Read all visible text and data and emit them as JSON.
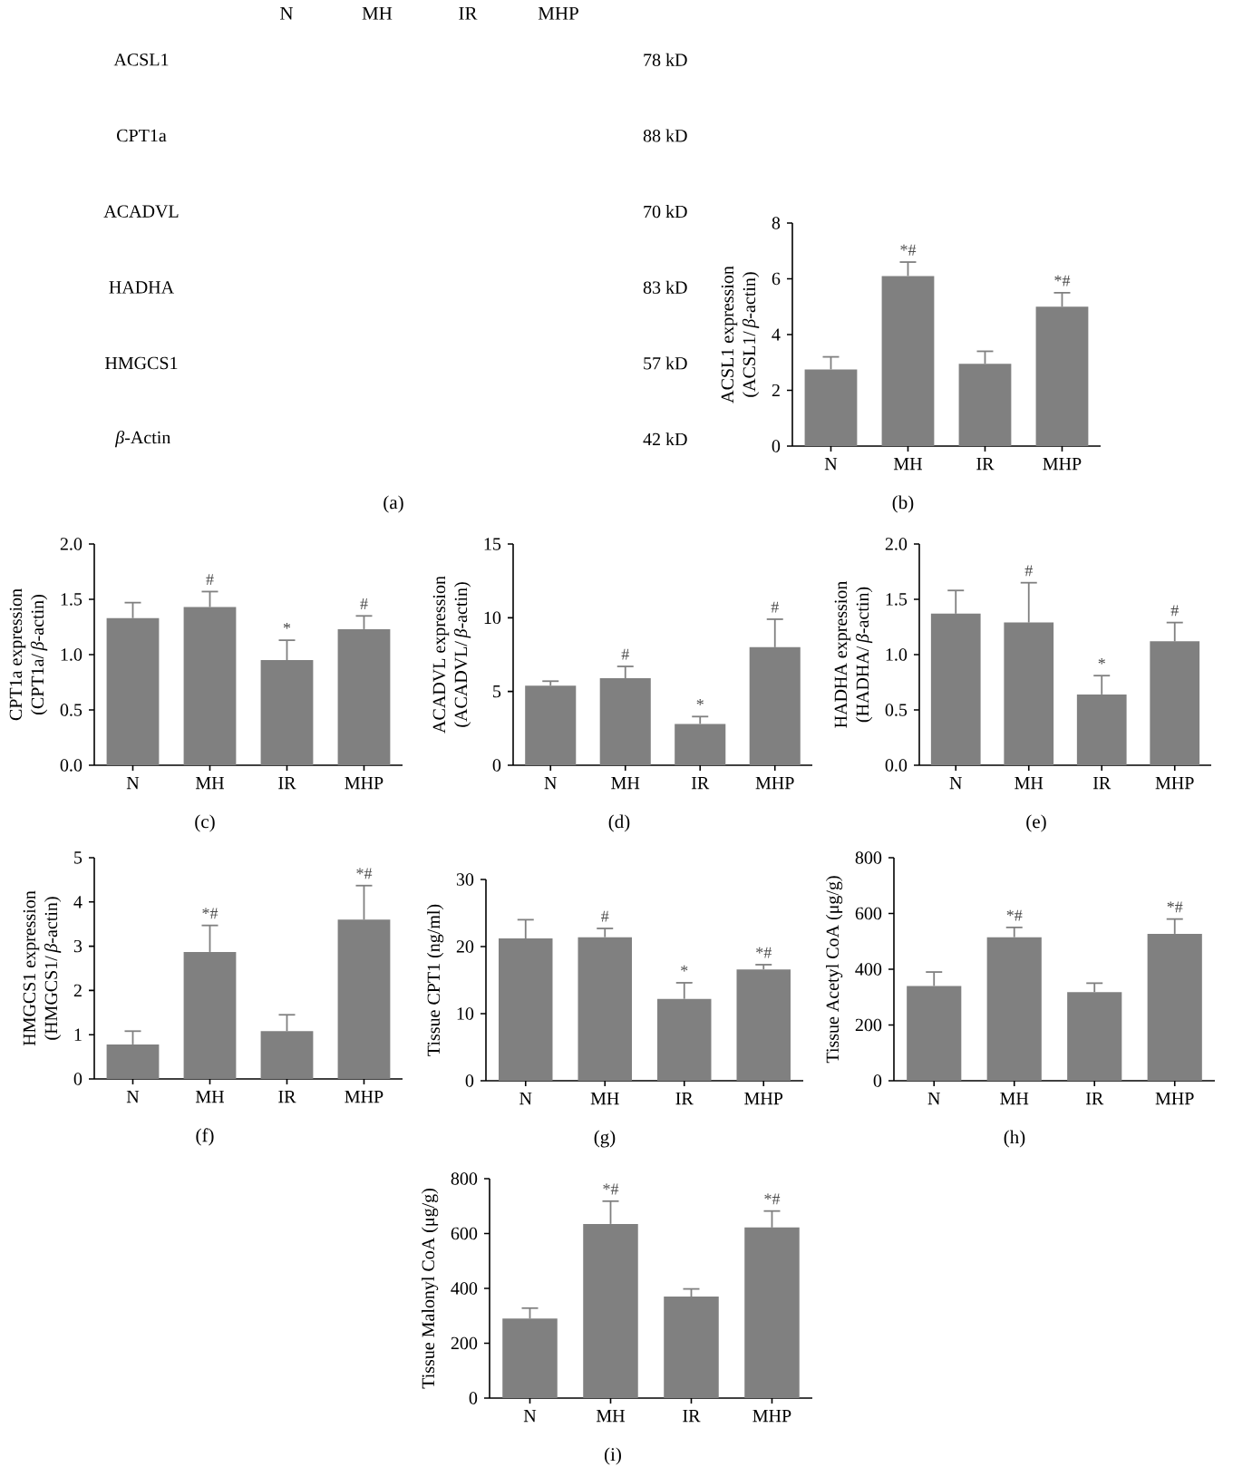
{
  "chart_data": [
    {
      "type": "other",
      "categories": [
        "N",
        "MH",
        "IR",
        "MHP"
      ],
      "y_categories": [
        "ACSL1",
        "CPT1a",
        "ACADVL",
        "HADHA",
        "HMGCS1",
        "*β*-Actin"
      ],
      "y2_categories": [
        "78 kD",
        "88 kD",
        "70 kD",
        "83 kD",
        "57 kD",
        "42 kD"
      ],
      "annotations": [
        "(a)"
      ]
    },
    {
      "type": "bar",
      "categories": [
        "N",
        "MH",
        "IR",
        "MHP"
      ],
      "values": [
        2.75,
        6.1,
        2.95,
        5.0
      ],
      "errors": [
        [
          2.75,
          3.2
        ],
        [
          6.1,
          6.6
        ],
        [
          2.95,
          3.4
        ],
        [
          5.0,
          5.5
        ]
      ],
      "color": "#808080",
      "ylim": [
        0,
        8
      ],
      "yticks": [
        0,
        2,
        4,
        6,
        8
      ],
      "ylabel": "ACSL1 expression\n(ACSL1/*β*-actin)",
      "annotations": [
        {
          "text": "*#",
          "x": "MH",
          "y": 6.6
        },
        {
          "text": "*#",
          "x": "MHP",
          "y": 5.5
        },
        "(b)"
      ]
    },
    {
      "type": "bar",
      "categories": [
        "N",
        "MH",
        "IR",
        "MHP"
      ],
      "values": [
        1.33,
        1.43,
        0.95,
        1.23
      ],
      "errors": [
        [
          1.33,
          1.47
        ],
        [
          1.43,
          1.57
        ],
        [
          0.95,
          1.13
        ],
        [
          1.23,
          1.35
        ]
      ],
      "color": "#808080",
      "ylim": [
        0,
        2
      ],
      "yticks": [
        {
          "value": 0,
          "label": "0.0"
        },
        {
          "value": 0.5,
          "label": "0.5"
        },
        {
          "value": 1,
          "label": "1.0"
        },
        {
          "value": 1.5,
          "label": "1.5"
        },
        {
          "value": 2,
          "label": "2.0"
        }
      ],
      "ylabel": "CPT1a expression\n(CPT1a/*β*-actin)",
      "annotations": [
        {
          "text": "#",
          "x": "MH",
          "y": 1.57
        },
        {
          "text": "*",
          "x": "IR",
          "y": 1.13
        },
        {
          "text": "#",
          "x": "MHP",
          "y": 1.35
        },
        "(c)"
      ]
    },
    {
      "type": "bar",
      "categories": [
        "N",
        "MH",
        "IR",
        "MHP"
      ],
      "values": [
        5.4,
        5.9,
        2.8,
        8.0
      ],
      "errors": [
        [
          5.4,
          5.7
        ],
        [
          5.9,
          6.7
        ],
        [
          2.8,
          3.3
        ],
        [
          8.0,
          9.9
        ]
      ],
      "color": "#808080",
      "ylim": [
        0,
        15
      ],
      "yticks": [
        0,
        5,
        10,
        15
      ],
      "ylabel": "ACADVL expression\n(ACADVL/*β*-actin)",
      "annotations": [
        {
          "text": "#",
          "x": "MH",
          "y": 6.7
        },
        {
          "text": "*",
          "x": "IR",
          "y": 3.3
        },
        {
          "text": "#",
          "x": "MHP",
          "y": 9.9
        },
        "(d)"
      ]
    },
    {
      "type": "bar",
      "categories": [
        "N",
        "MH",
        "IR",
        "MHP"
      ],
      "values": [
        1.37,
        1.29,
        0.64,
        1.12
      ],
      "errors": [
        [
          1.37,
          1.58
        ],
        [
          1.29,
          1.65
        ],
        [
          0.64,
          0.81
        ],
        [
          1.12,
          1.29
        ]
      ],
      "color": "#808080",
      "ylim": [
        0,
        2
      ],
      "yticks": [
        {
          "value": 0,
          "label": "0.0"
        },
        {
          "value": 0.5,
          "label": "0.5"
        },
        {
          "value": 1,
          "label": "1.0"
        },
        {
          "value": 1.5,
          "label": "1.5"
        },
        {
          "value": 2,
          "label": "2.0"
        }
      ],
      "ylabel": "HADHA expression\n(HADHA/*β*-actin)",
      "annotations": [
        {
          "text": "#",
          "x": "MH",
          "y": 1.65
        },
        {
          "text": "*",
          "x": "IR",
          "y": 0.81
        },
        {
          "text": "#",
          "x": "MHP",
          "y": 1.29
        },
        "(e)"
      ]
    },
    {
      "type": "bar",
      "categories": [
        "N",
        "MH",
        "IR",
        "MHP"
      ],
      "values": [
        0.78,
        2.87,
        1.08,
        3.6
      ],
      "errors": [
        [
          0.78,
          1.08
        ],
        [
          2.87,
          3.47
        ],
        [
          1.08,
          1.45
        ],
        [
          3.6,
          4.37
        ]
      ],
      "color": "#808080",
      "ylim": [
        0,
        5
      ],
      "yticks": [
        0,
        1,
        2,
        3,
        4,
        5
      ],
      "ylabel": "HMGCS1 expression\n(HMGCS1/*β*-actin)",
      "annotations": [
        {
          "text": "*#",
          "x": "MH",
          "y": 3.47
        },
        {
          "text": "*#",
          "x": "MHP",
          "y": 4.37
        },
        "(f)"
      ]
    },
    {
      "type": "bar",
      "categories": [
        "N",
        "MH",
        "IR",
        "MHP"
      ],
      "values": [
        21.2,
        21.4,
        12.2,
        16.6
      ],
      "errors": [
        [
          21.2,
          24
        ],
        [
          21.4,
          22.7
        ],
        [
          12.2,
          14.6
        ],
        [
          16.6,
          17.3
        ]
      ],
      "color": "#808080",
      "ylim": [
        0,
        30
      ],
      "yticks": [
        0,
        10,
        20,
        30
      ],
      "ylabel": "Tissue CPT1 (ng/ml)",
      "annotations": [
        {
          "text": "#",
          "x": "MH",
          "y": 22.7
        },
        {
          "text": "*",
          "x": "IR",
          "y": 14.6
        },
        {
          "text": "*#",
          "x": "MHP",
          "y": 17.3
        },
        "(g)"
      ]
    },
    {
      "type": "bar",
      "categories": [
        "N",
        "MH",
        "IR",
        "MHP"
      ],
      "values": [
        340,
        515,
        318,
        527
      ],
      "errors": [
        [
          340,
          390
        ],
        [
          515,
          550
        ],
        [
          318,
          350
        ],
        [
          527,
          580
        ]
      ],
      "color": "#808080",
      "ylim": [
        0,
        800
      ],
      "yticks": [
        0,
        200,
        400,
        600,
        800
      ],
      "ylabel": "Tissue Acetyl CoA (μg/g)",
      "annotations": [
        {
          "text": "*#",
          "x": "MH",
          "y": 550
        },
        {
          "text": "*#",
          "x": "MHP",
          "y": 580
        },
        "(h)"
      ]
    },
    {
      "type": "bar",
      "categories": [
        "N",
        "MH",
        "IR",
        "MHP"
      ],
      "values": [
        290,
        635,
        370,
        622
      ],
      "errors": [
        [
          290,
          328
        ],
        [
          635,
          718
        ],
        [
          370,
          398
        ],
        [
          622,
          682
        ]
      ],
      "color": "#808080",
      "ylim": [
        0,
        800
      ],
      "yticks": [
        0,
        200,
        400,
        600,
        800
      ],
      "ylabel": "Tissue Malonyl CoA (μg/g)",
      "annotations": [
        {
          "text": "*#",
          "x": "MH",
          "y": 718
        },
        {
          "text": "*#",
          "x": "MHP",
          "y": 682
        },
        "(i)"
      ]
    }
  ]
}
